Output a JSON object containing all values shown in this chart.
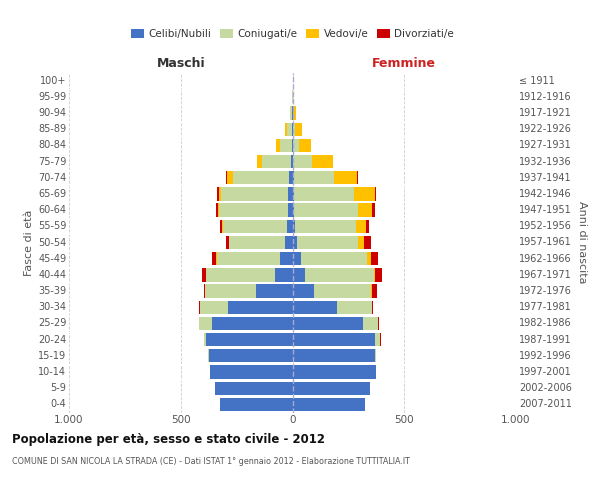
{
  "age_groups": [
    "0-4",
    "5-9",
    "10-14",
    "15-19",
    "20-24",
    "25-29",
    "30-34",
    "35-39",
    "40-44",
    "45-49",
    "50-54",
    "55-59",
    "60-64",
    "65-69",
    "70-74",
    "75-79",
    "80-84",
    "85-89",
    "90-94",
    "95-99",
    "100+"
  ],
  "birth_years": [
    "2007-2011",
    "2002-2006",
    "1997-2001",
    "1992-1996",
    "1987-1991",
    "1982-1986",
    "1977-1981",
    "1972-1976",
    "1967-1971",
    "1962-1966",
    "1957-1961",
    "1952-1956",
    "1947-1951",
    "1942-1946",
    "1937-1941",
    "1932-1936",
    "1927-1931",
    "1922-1926",
    "1917-1921",
    "1912-1916",
    "≤ 1911"
  ],
  "male_celibi": [
    325,
    345,
    370,
    375,
    385,
    360,
    290,
    165,
    80,
    55,
    32,
    25,
    22,
    18,
    15,
    8,
    3,
    2,
    2,
    0,
    0
  ],
  "male_coniugati": [
    0,
    0,
    0,
    2,
    12,
    58,
    125,
    225,
    305,
    285,
    250,
    285,
    305,
    300,
    250,
    130,
    55,
    22,
    8,
    3,
    0
  ],
  "male_vedovi": [
    0,
    0,
    0,
    0,
    1,
    1,
    1,
    2,
    2,
    4,
    4,
    5,
    6,
    12,
    28,
    22,
    18,
    8,
    3,
    1,
    0
  ],
  "male_divorziati": [
    0,
    0,
    0,
    0,
    0,
    1,
    3,
    5,
    16,
    14,
    12,
    10,
    8,
    6,
    3,
    1,
    0,
    0,
    0,
    0,
    0
  ],
  "female_celibi": [
    325,
    345,
    375,
    370,
    370,
    315,
    200,
    98,
    58,
    38,
    18,
    10,
    8,
    5,
    5,
    3,
    2,
    1,
    0,
    0,
    0
  ],
  "female_coniugati": [
    0,
    0,
    0,
    4,
    22,
    68,
    155,
    255,
    305,
    295,
    275,
    275,
    285,
    270,
    180,
    85,
    28,
    12,
    4,
    1,
    0
  ],
  "female_vedovi": [
    0,
    0,
    0,
    0,
    1,
    1,
    2,
    3,
    6,
    16,
    28,
    42,
    62,
    92,
    105,
    92,
    55,
    28,
    10,
    3,
    0
  ],
  "female_divorziati": [
    0,
    0,
    0,
    0,
    1,
    2,
    5,
    20,
    32,
    32,
    30,
    15,
    15,
    5,
    3,
    1,
    0,
    0,
    0,
    0,
    0
  ],
  "colors": {
    "celibi": "#4472c4",
    "coniugati": "#c5d9a0",
    "vedovi": "#ffc000",
    "divorziati": "#cc0000"
  },
  "title_main": "Popolazione per età, sesso e stato civile - 2012",
  "title_sub": "COMUNE DI SAN NICOLA LA STRADA (CE) - Dati ISTAT 1° gennaio 2012 - Elaborazione TUTTITALIA.IT",
  "xlabel_left": "Maschi",
  "xlabel_right": "Femmine",
  "ylabel_left": "Fasce di età",
  "ylabel_right": "Anni di nascita",
  "xlim": 1000,
  "bg_color": "#ffffff",
  "grid_color": "#cccccc",
  "legend_labels": [
    "Celibi/Nubili",
    "Coniugati/e",
    "Vedovi/e",
    "Divorziati/e"
  ]
}
